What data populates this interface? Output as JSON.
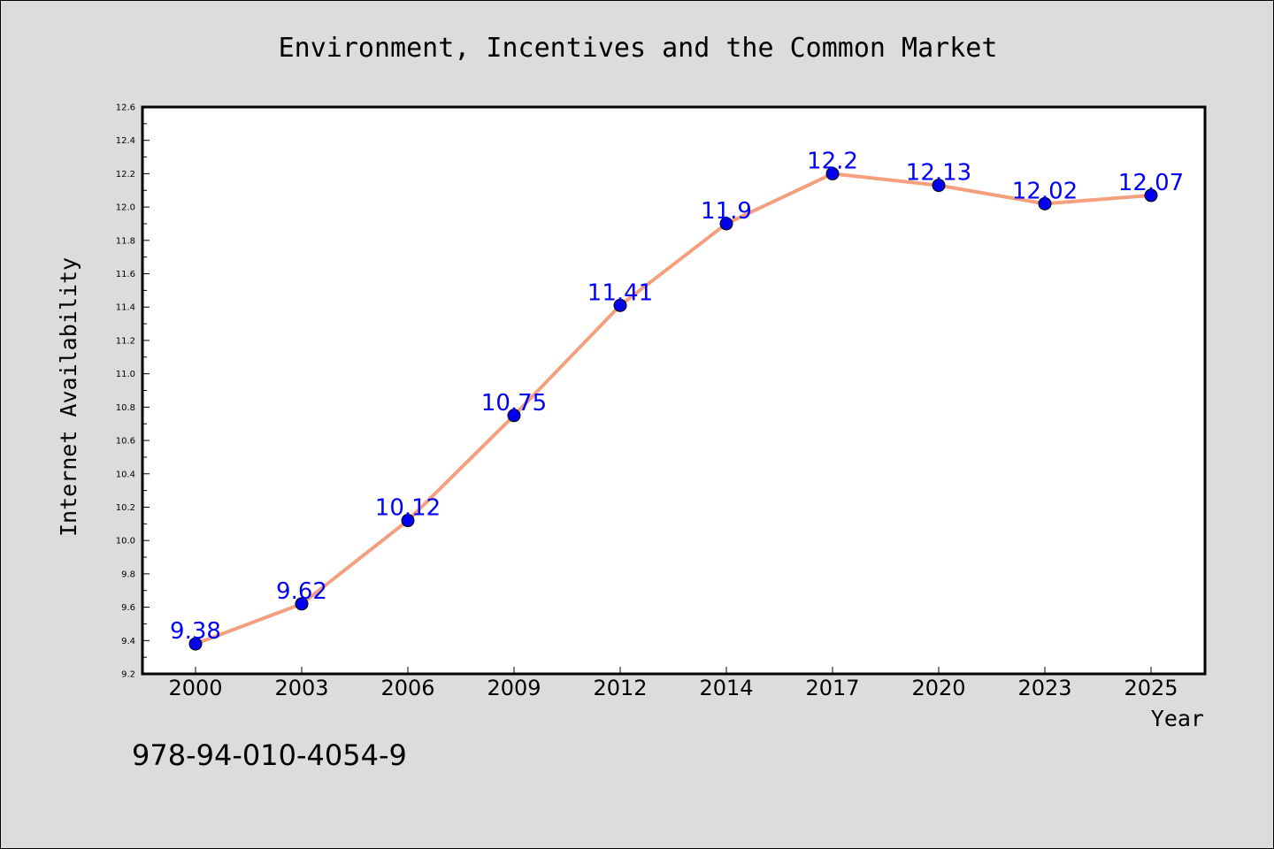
{
  "chart_data": {
    "type": "line",
    "title": "Environment, Incentives and the Common Market",
    "xlabel": "Year",
    "ylabel": "Internet Availability",
    "categories": [
      "2000",
      "2003",
      "2006",
      "2009",
      "2012",
      "2014",
      "2017",
      "2020",
      "2023",
      "2025"
    ],
    "series": [
      {
        "values": [
          9.38,
          9.62,
          10.12,
          10.75,
          11.41,
          11.9,
          12.2,
          12.13,
          12.02,
          12.07
        ],
        "data_labels": [
          "9.38",
          "9.62",
          "10.12",
          "10.75",
          "11.41",
          "11.9",
          "12.2",
          "12.13",
          "12.02",
          "12.07"
        ],
        "line_color": "#f4a07f",
        "marker_color": "#0000ee",
        "label_color": "#0000ff"
      }
    ],
    "ylim": [
      9.2,
      12.6
    ],
    "yticks": [
      "9.2",
      "9.4",
      "9.6",
      "9.8",
      "10.0",
      "10.2",
      "10.4",
      "10.6",
      "10.8",
      "11.0",
      "11.2",
      "11.4",
      "11.6",
      "11.8",
      "12.0",
      "12.2",
      "12.4",
      "12.6"
    ],
    "grid": false,
    "legend": "none"
  },
  "footer": {
    "isbn": "978-94-010-4054-9"
  },
  "colors": {
    "background": "#dcdcdc",
    "plot_background": "#ffffff"
  }
}
